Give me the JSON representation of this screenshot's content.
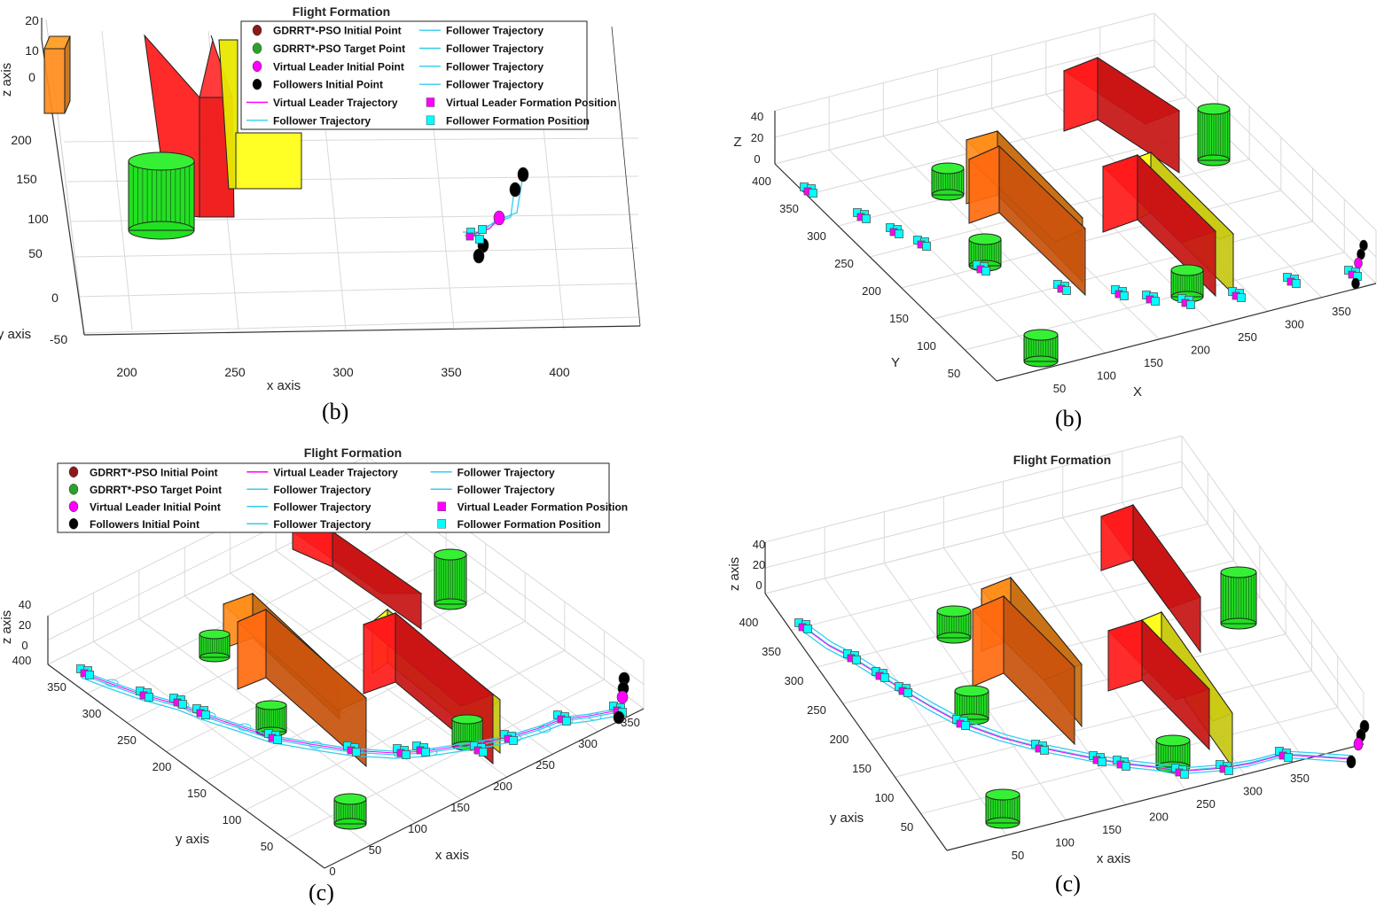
{
  "figure_captions": [
    "(b)",
    "(b)",
    "(c)",
    "(c)"
  ],
  "colors": {
    "obstacle_orange": "#ff8c1a",
    "obstacle_dark_orange": "#ff6a10",
    "obstacle_red": "#ff1a1a",
    "obstacle_yellow": "#ffff1a",
    "obstacle_green": "#22e022",
    "virtual_leader": "#ff00ff",
    "follower": "#00ffff",
    "follower_trajectory": "#33ccee",
    "initial_point": "#8b1a1a",
    "target_point": "#2ca02c",
    "followers_initial": "#000000",
    "grid": "#d9d9d9"
  },
  "chart_data": [
    {
      "panel": "top-left",
      "type": "scatter",
      "title": "Flight Formation",
      "xlabel": "x axis",
      "ylabel": "y axis",
      "zlabel": "z axis",
      "x_ticks": [
        "200",
        "250",
        "300",
        "350",
        "400"
      ],
      "y_ticks": [
        "-50",
        "0",
        "50",
        "100",
        "150",
        "200"
      ],
      "z_ticks": [
        "0",
        "10",
        "20"
      ],
      "xlim": [
        180,
        430
      ],
      "ylim": [
        -60,
        220
      ],
      "grid": true,
      "legend_position": "top-right",
      "legend": [
        {
          "label": "GDRRT*-PSO Initial Point",
          "marker": "circle",
          "color": "#8b1a1a"
        },
        {
          "label": "GDRRT*-PSO Target Point",
          "marker": "circle",
          "color": "#2ca02c"
        },
        {
          "label": "Virtual Leader Initial Point",
          "marker": "circle",
          "color": "#ff00ff"
        },
        {
          "label": "Followers Initial Point",
          "marker": "circle",
          "color": "#000000"
        },
        {
          "label": "Virtual Leader Trajectory",
          "marker": "line",
          "color": "#ff00ff"
        },
        {
          "label": "Follower Trajectory",
          "marker": "line",
          "color": "#33ccee"
        },
        {
          "label": "Follower Trajectory",
          "marker": "line",
          "color": "#33ccee"
        },
        {
          "label": "Follower Trajectory",
          "marker": "line",
          "color": "#33ccee"
        },
        {
          "label": "Follower Trajectory",
          "marker": "line",
          "color": "#33ccee"
        },
        {
          "label": "Follower Trajectory",
          "marker": "line",
          "color": "#33ccee"
        },
        {
          "label": "Virtual Leader Formation Position",
          "marker": "square",
          "color": "#ff00ff"
        },
        {
          "label": "Follower Formation Position",
          "marker": "square",
          "color": "#00ffff"
        }
      ]
    },
    {
      "panel": "top-right",
      "type": "scatter",
      "title": "",
      "xlabel": "X",
      "ylabel": "Y",
      "zlabel": "Z",
      "x_ticks": [
        "50",
        "100",
        "150",
        "200",
        "250",
        "300",
        "350"
      ],
      "y_ticks": [
        "50",
        "100",
        "150",
        "200",
        "250",
        "300",
        "350",
        "400"
      ],
      "z_ticks": [
        "0",
        "20",
        "40"
      ],
      "grid": true,
      "legend": []
    },
    {
      "panel": "bottom-left",
      "type": "scatter",
      "title": "Flight Formation",
      "xlabel": "x axis",
      "ylabel": "y axis",
      "zlabel": "z axis",
      "x_ticks": [
        "0",
        "50",
        "100",
        "150",
        "200",
        "250",
        "300",
        "350"
      ],
      "y_ticks": [
        "50",
        "100",
        "150",
        "200",
        "250",
        "300",
        "350",
        "400"
      ],
      "z_ticks": [
        "0",
        "20",
        "40"
      ],
      "grid": true,
      "legend_position": "top",
      "legend": [
        {
          "label": "GDRRT*-PSO Initial Point",
          "marker": "circle",
          "color": "#8b1a1a"
        },
        {
          "label": "GDRRT*-PSO Target Point",
          "marker": "circle",
          "color": "#2ca02c"
        },
        {
          "label": "Virtual Leader Initial Point",
          "marker": "circle",
          "color": "#ff00ff"
        },
        {
          "label": "Followers Initial Point",
          "marker": "circle",
          "color": "#000000"
        },
        {
          "label": "Virtual Leader Trajectory",
          "marker": "line",
          "color": "#ff00ff"
        },
        {
          "label": "Follower Trajectory",
          "marker": "line",
          "color": "#33ccee"
        },
        {
          "label": "Follower Trajectory",
          "marker": "line",
          "color": "#33ccee"
        },
        {
          "label": "Follower Trajectory",
          "marker": "line",
          "color": "#33ccee"
        },
        {
          "label": "Follower Trajectory",
          "marker": "line",
          "color": "#33ccee"
        },
        {
          "label": "Follower Trajectory",
          "marker": "line",
          "color": "#33ccee"
        },
        {
          "label": "Virtual Leader Formation Position",
          "marker": "square",
          "color": "#ff00ff"
        },
        {
          "label": "Follower Formation Position",
          "marker": "square",
          "color": "#00ffff"
        }
      ]
    },
    {
      "panel": "bottom-right",
      "type": "scatter",
      "title": "Flight Formation",
      "xlabel": "x axis",
      "ylabel": "y axis",
      "zlabel": "z axis",
      "x_ticks": [
        "50",
        "100",
        "150",
        "200",
        "250",
        "300",
        "350"
      ],
      "y_ticks": [
        "50",
        "100",
        "150",
        "200",
        "250",
        "300",
        "350",
        "400"
      ],
      "z_ticks": [
        "0",
        "20",
        "40"
      ],
      "grid": true,
      "legend": []
    }
  ]
}
